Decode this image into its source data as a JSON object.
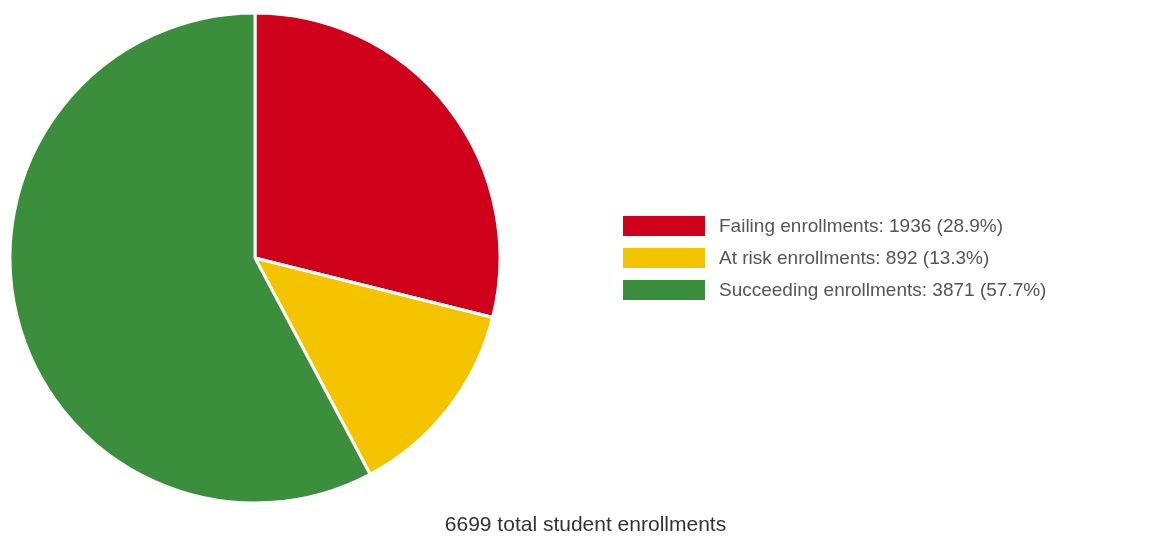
{
  "chart_data": {
    "type": "pie",
    "categories": [
      "Failing enrollments: 1936 (28.9%)",
      "At risk enrollments: 892 (13.3%)",
      "Succeeding enrollments: 3871 (57.7%)"
    ],
    "values": [
      1936,
      892,
      3871
    ],
    "colors": [
      "#d0021b",
      "#f5c400",
      "#3b8e3b"
    ],
    "legend": "right",
    "annotations": [
      "6699 total student enrollments"
    ]
  }
}
